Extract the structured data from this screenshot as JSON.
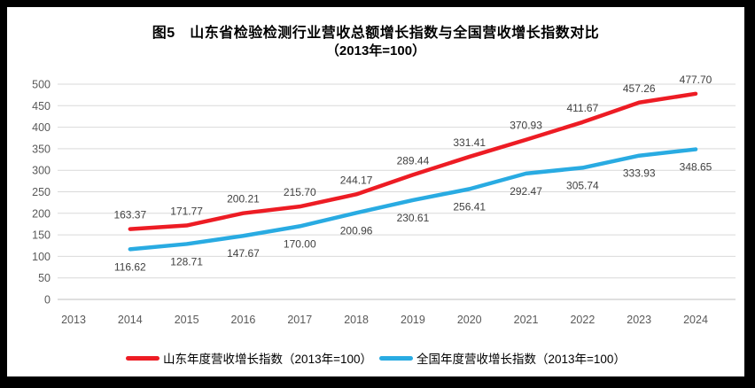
{
  "title": {
    "line1": "图5　山东省检验检测行业营收总额增长指数与全国营收增长指数对比",
    "line2": "（2013年=100）"
  },
  "chart_data": {
    "type": "line",
    "categories": [
      "2013",
      "2014",
      "2015",
      "2016",
      "2017",
      "2018",
      "2019",
      "2020",
      "2021",
      "2022",
      "2023",
      "2024"
    ],
    "series": [
      {
        "name": "山东年度营收增长指数（2013年=100）",
        "color": "#ed1c24",
        "values": [
          null,
          163.37,
          171.77,
          200.21,
          215.7,
          244.17,
          289.44,
          331.41,
          370.93,
          411.67,
          457.26,
          477.7
        ]
      },
      {
        "name": "全国年度营收增长指数（2013年=100）",
        "color": "#29abe2",
        "values": [
          null,
          116.62,
          128.71,
          147.67,
          170.0,
          200.96,
          230.61,
          256.41,
          292.47,
          305.74,
          333.93,
          348.65
        ]
      }
    ],
    "ylim": [
      0,
      500
    ],
    "ytick_step": 50,
    "grid": true,
    "legend_position": "bottom",
    "xlabel": "",
    "ylabel": "",
    "grid_color": "#d9d9d9",
    "axis_color": "#bfbfbf",
    "tick_color": "#595959",
    "label_color": "#404040",
    "frame_color": "#000000"
  }
}
